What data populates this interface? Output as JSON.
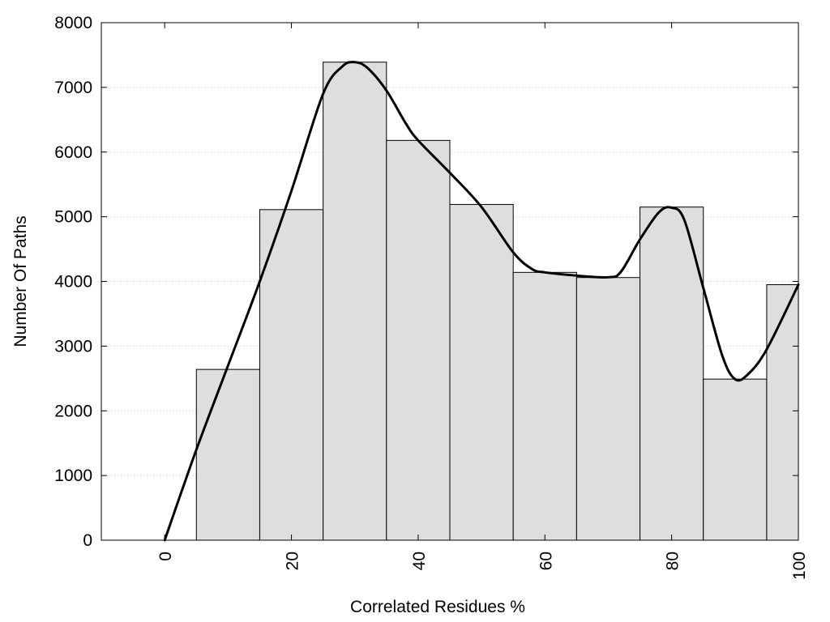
{
  "chart_data": {
    "type": "bar",
    "title": "",
    "xlabel": "Correlated Residues %",
    "ylabel": "Number Of Paths",
    "xlim": [
      -10,
      100
    ],
    "ylim": [
      0,
      8000
    ],
    "xticks": [
      0,
      20,
      40,
      60,
      80,
      100
    ],
    "yticks": [
      0,
      1000,
      2000,
      3000,
      4000,
      5000,
      6000,
      7000,
      8000
    ],
    "grid": "horizontal-dotted",
    "bar_color": "#dedede",
    "bar_edge_color": "#000000",
    "bin_width": 10,
    "x": [
      10,
      20,
      30,
      40,
      50,
      60,
      70,
      80,
      90,
      100
    ],
    "values": [
      2640,
      5110,
      7390,
      6180,
      5190,
      4140,
      4060,
      5150,
      2490,
      3950
    ],
    "curve": {
      "color": "#000000",
      "x": [
        0,
        5,
        10,
        15,
        20,
        25,
        28,
        30,
        32,
        35,
        38,
        40,
        45,
        50,
        55,
        58,
        60,
        65,
        70,
        72,
        75,
        78,
        80,
        82,
        85,
        88,
        90,
        92,
        95,
        100
      ],
      "y": [
        0,
        1400,
        2700,
        4000,
        5400,
        6900,
        7320,
        7390,
        7300,
        6950,
        6450,
        6180,
        5680,
        5150,
        4450,
        4190,
        4140,
        4090,
        4065,
        4150,
        4650,
        5070,
        5140,
        4950,
        3900,
        2850,
        2490,
        2560,
        2950,
        3950
      ]
    }
  }
}
